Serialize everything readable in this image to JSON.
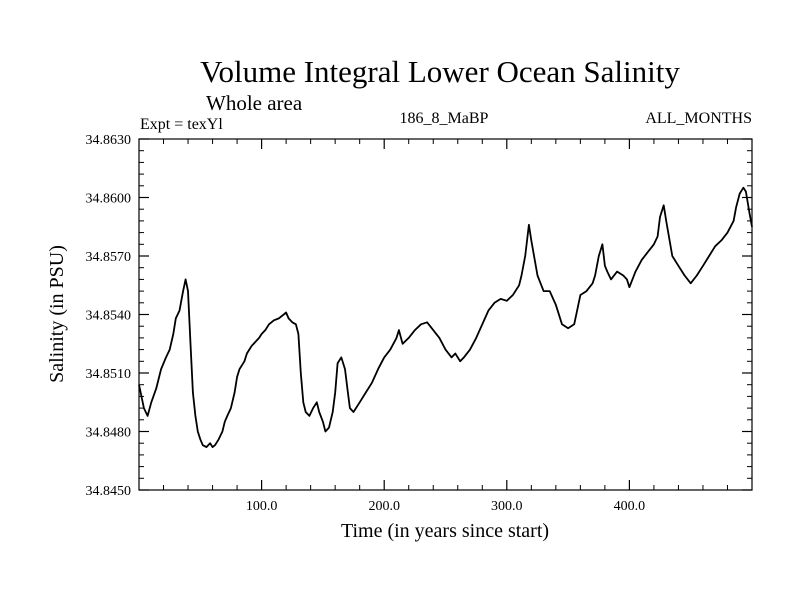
{
  "chart_data": {
    "type": "line",
    "title": "Volume Integral Lower Ocean Salinity",
    "subtitle": "Whole area",
    "header_left": "Expt = texYl",
    "header_center": "186_8_MaBP",
    "header_right": "ALL_MONTHS",
    "xlabel": "Time (in years since start)",
    "ylabel": "Salinity (in PSU)",
    "xlim": [
      0,
      500
    ],
    "ylim": [
      34.845,
      34.863
    ],
    "x_ticks": [
      {
        "value": 100,
        "label": "100.0"
      },
      {
        "value": 200,
        "label": "200.0"
      },
      {
        "value": 300,
        "label": "300.0"
      },
      {
        "value": 400,
        "label": "400.0"
      }
    ],
    "y_ticks": [
      {
        "value": 34.845,
        "label": "34.8450"
      },
      {
        "value": 34.848,
        "label": "34.8480"
      },
      {
        "value": 34.851,
        "label": "34.8510"
      },
      {
        "value": 34.854,
        "label": "34.8540"
      },
      {
        "value": 34.857,
        "label": "34.8570"
      },
      {
        "value": 34.86,
        "label": "34.8600"
      },
      {
        "value": 34.863,
        "label": "34.8630"
      }
    ],
    "grid": false,
    "series": [
      {
        "color": "#000000",
        "x": [
          0,
          4,
          7,
          10,
          14,
          18,
          22,
          25,
          28,
          30,
          33,
          36,
          38,
          40,
          42,
          44,
          46,
          48,
          50,
          52,
          55,
          58,
          60,
          62,
          65,
          68,
          70,
          72,
          75,
          78,
          80,
          82,
          84,
          86,
          88,
          90,
          92,
          95,
          98,
          100,
          103,
          106,
          110,
          114,
          118,
          120,
          122,
          125,
          128,
          130,
          132,
          134,
          136,
          139,
          142,
          145,
          147,
          150,
          152,
          155,
          158,
          160,
          162,
          165,
          168,
          170,
          172,
          175,
          180,
          185,
          190,
          195,
          200,
          205,
          210,
          212,
          215,
          220,
          225,
          230,
          235,
          240,
          245,
          250,
          255,
          258,
          262,
          265,
          270,
          275,
          280,
          285,
          290,
          295,
          300,
          305,
          310,
          312,
          315,
          318,
          320,
          325,
          330,
          335,
          340,
          345,
          350,
          355,
          360,
          365,
          370,
          372,
          375,
          378,
          380,
          382,
          385,
          390,
          395,
          398,
          400,
          405,
          410,
          415,
          420,
          423,
          425,
          428,
          430,
          435,
          440,
          445,
          450,
          455,
          460,
          465,
          470,
          475,
          480,
          485,
          487,
          490,
          493,
          495,
          498,
          500
        ],
        "y": [
          34.8504,
          34.8492,
          34.8488,
          34.8495,
          34.8502,
          34.8512,
          34.8518,
          34.8522,
          34.853,
          34.8538,
          34.8542,
          34.8552,
          34.8558,
          34.8552,
          34.8525,
          34.85,
          34.8488,
          34.848,
          34.8476,
          34.8473,
          34.8472,
          34.8474,
          34.8472,
          34.8473,
          34.8476,
          34.848,
          34.8485,
          34.8488,
          34.8492,
          34.85,
          34.8508,
          34.8512,
          34.8514,
          34.8516,
          34.852,
          34.8522,
          34.8524,
          34.8526,
          34.8528,
          34.853,
          34.8532,
          34.8535,
          34.8537,
          34.8538,
          34.854,
          34.8541,
          34.8538,
          34.8536,
          34.8535,
          34.853,
          34.851,
          34.8495,
          34.849,
          34.8488,
          34.8492,
          34.8495,
          34.849,
          34.8485,
          34.848,
          34.8482,
          34.849,
          34.85,
          34.8515,
          34.8518,
          34.8512,
          34.8502,
          34.8492,
          34.849,
          34.8495,
          34.85,
          34.8505,
          34.8512,
          34.8518,
          34.8522,
          34.8528,
          34.8532,
          34.8525,
          34.8528,
          34.8532,
          34.8535,
          34.8536,
          34.8532,
          34.8528,
          34.8522,
          34.8518,
          34.852,
          34.8516,
          34.8518,
          34.8522,
          34.8528,
          34.8535,
          34.8542,
          34.8546,
          34.8548,
          34.8547,
          34.855,
          34.8555,
          34.856,
          34.857,
          34.8586,
          34.8578,
          34.856,
          34.8552,
          34.8552,
          34.8545,
          34.8535,
          34.8533,
          34.8535,
          34.855,
          34.8552,
          34.8556,
          34.856,
          34.857,
          34.8576,
          34.8565,
          34.8562,
          34.8558,
          34.8562,
          34.856,
          34.8558,
          34.8554,
          34.8562,
          34.8568,
          34.8572,
          34.8576,
          34.858,
          34.859,
          34.8596,
          34.8588,
          34.857,
          34.8565,
          34.856,
          34.8556,
          34.856,
          34.8565,
          34.857,
          34.8575,
          34.8578,
          34.8582,
          34.8588,
          34.8595,
          34.8602,
          34.8605,
          34.8603,
          34.8592,
          34.8585
        ]
      }
    ]
  }
}
